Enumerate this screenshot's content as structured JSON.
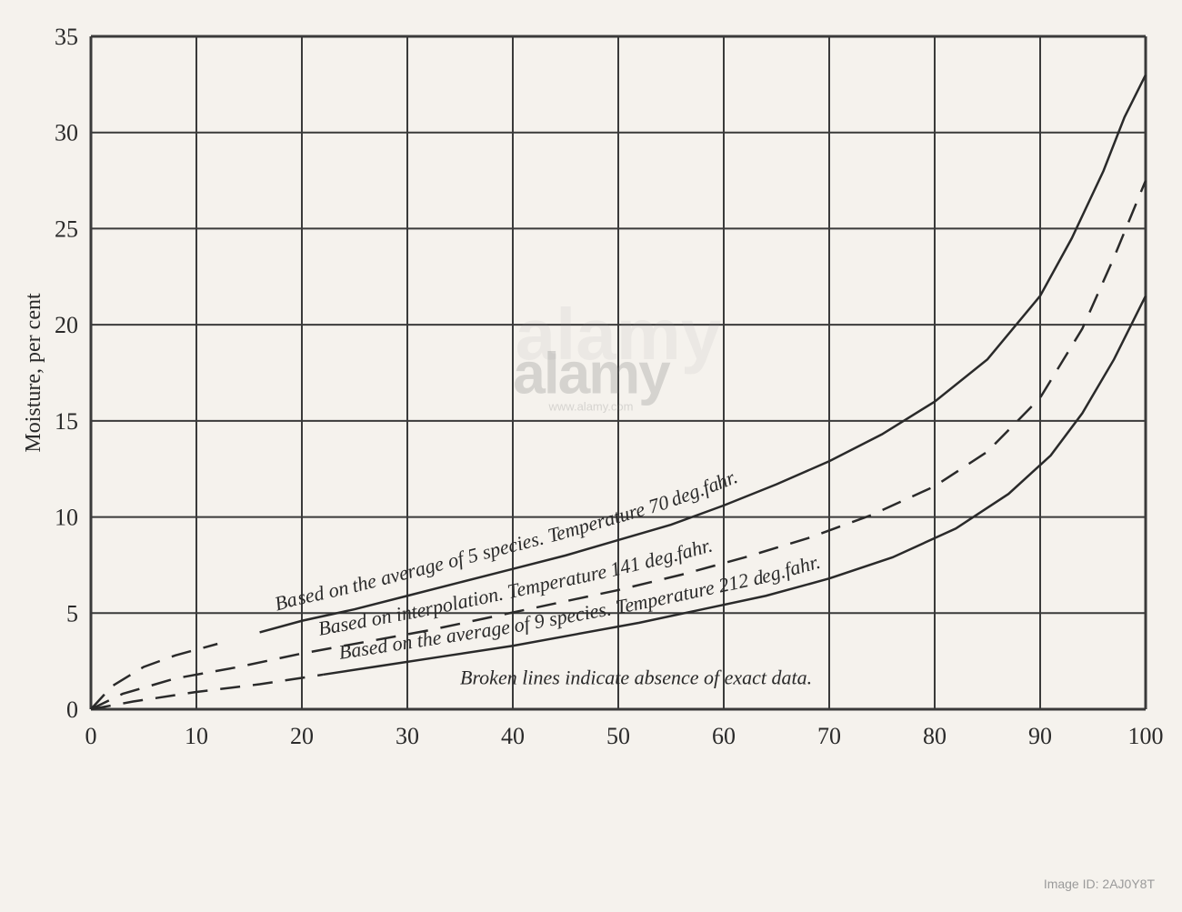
{
  "chart": {
    "type": "line",
    "background_color": "#f5f2ed",
    "plot_background": "#f5f2ed",
    "grid_color": "#3a3a3a",
    "grid_stroke_width": 2,
    "border_stroke_width": 3,
    "axis_color": "#2a2a2a",
    "xlim": [
      0,
      100
    ],
    "ylim": [
      0,
      35
    ],
    "xtick_step": 10,
    "ytick_step": 5,
    "xlabel": "",
    "ylabel": "Moisture, per cent",
    "ylabel_fontsize": 24,
    "tick_fontsize": 26,
    "tick_color": "#2a2a2a",
    "note_text": "Broken lines indicate absence of exact data.",
    "note_fontsize": 22,
    "note_font_style": "italic",
    "note_color": "#2a2a2a",
    "curves": [
      {
        "id": "curve-70deg",
        "label": "Based on the average of 5 species.   Temperature 70 deg.fahr.",
        "label_fontsize": 22,
        "label_color": "#2a2a2a",
        "color": "#2a2a2a",
        "stroke_width": 2.5,
        "dash_start_x": 0,
        "dash_end_x": 14,
        "data": [
          [
            0,
            0
          ],
          [
            2,
            1.2
          ],
          [
            5,
            2.2
          ],
          [
            8,
            2.8
          ],
          [
            12,
            3.4
          ],
          [
            16,
            4.0
          ],
          [
            20,
            4.6
          ],
          [
            25,
            5.2
          ],
          [
            30,
            5.9
          ],
          [
            35,
            6.6
          ],
          [
            40,
            7.3
          ],
          [
            45,
            8.0
          ],
          [
            50,
            8.8
          ],
          [
            55,
            9.6
          ],
          [
            60,
            10.6
          ],
          [
            65,
            11.7
          ],
          [
            70,
            12.9
          ],
          [
            75,
            14.3
          ],
          [
            80,
            16.0
          ],
          [
            85,
            18.2
          ],
          [
            90,
            21.5
          ],
          [
            93,
            24.5
          ],
          [
            96,
            28.0
          ],
          [
            98,
            30.8
          ],
          [
            100,
            33.0
          ]
        ]
      },
      {
        "id": "curve-141deg",
        "label": "Based on interpolation.   Temperature 141 deg.fahr.",
        "label_fontsize": 22,
        "label_color": "#2a2a2a",
        "color": "#2a2a2a",
        "stroke_width": 2.5,
        "all_dashed": true,
        "data": [
          [
            0,
            0
          ],
          [
            3,
            0.8
          ],
          [
            8,
            1.6
          ],
          [
            14,
            2.2
          ],
          [
            20,
            2.9
          ],
          [
            26,
            3.5
          ],
          [
            32,
            4.1
          ],
          [
            38,
            4.8
          ],
          [
            44,
            5.5
          ],
          [
            50,
            6.2
          ],
          [
            56,
            7.0
          ],
          [
            62,
            7.9
          ],
          [
            68,
            8.9
          ],
          [
            74,
            10.1
          ],
          [
            80,
            11.6
          ],
          [
            85,
            13.4
          ],
          [
            90,
            16.2
          ],
          [
            94,
            19.8
          ],
          [
            97,
            23.5
          ],
          [
            100,
            27.5
          ]
        ]
      },
      {
        "id": "curve-212deg",
        "label": "Based on the average of 9 species.  Temperature 212 deg.fahr.",
        "label_fontsize": 22,
        "label_color": "#2a2a2a",
        "color": "#2a2a2a",
        "stroke_width": 2.5,
        "dash_start_x": 0,
        "dash_end_x": 22,
        "data": [
          [
            0,
            0
          ],
          [
            4,
            0.4
          ],
          [
            10,
            0.9
          ],
          [
            16,
            1.3
          ],
          [
            22,
            1.8
          ],
          [
            28,
            2.3
          ],
          [
            34,
            2.8
          ],
          [
            40,
            3.3
          ],
          [
            46,
            3.9
          ],
          [
            52,
            4.5
          ],
          [
            58,
            5.2
          ],
          [
            64,
            5.9
          ],
          [
            70,
            6.8
          ],
          [
            76,
            7.9
          ],
          [
            82,
            9.4
          ],
          [
            87,
            11.2
          ],
          [
            91,
            13.2
          ],
          [
            94,
            15.4
          ],
          [
            97,
            18.2
          ],
          [
            100,
            21.5
          ]
        ]
      }
    ]
  },
  "watermark": {
    "logo_text": "alamy",
    "logo_color": "#dcdcdc",
    "logo_fontsize": 64,
    "id_text": "Image ID: 2AJ0Y8T",
    "id_prefix": "Image ID: ",
    "id_value": "2AJ0Y8T",
    "id_color": "#b8b8b8",
    "id_fontsize": 14,
    "url_text": "www.alamy.com"
  }
}
